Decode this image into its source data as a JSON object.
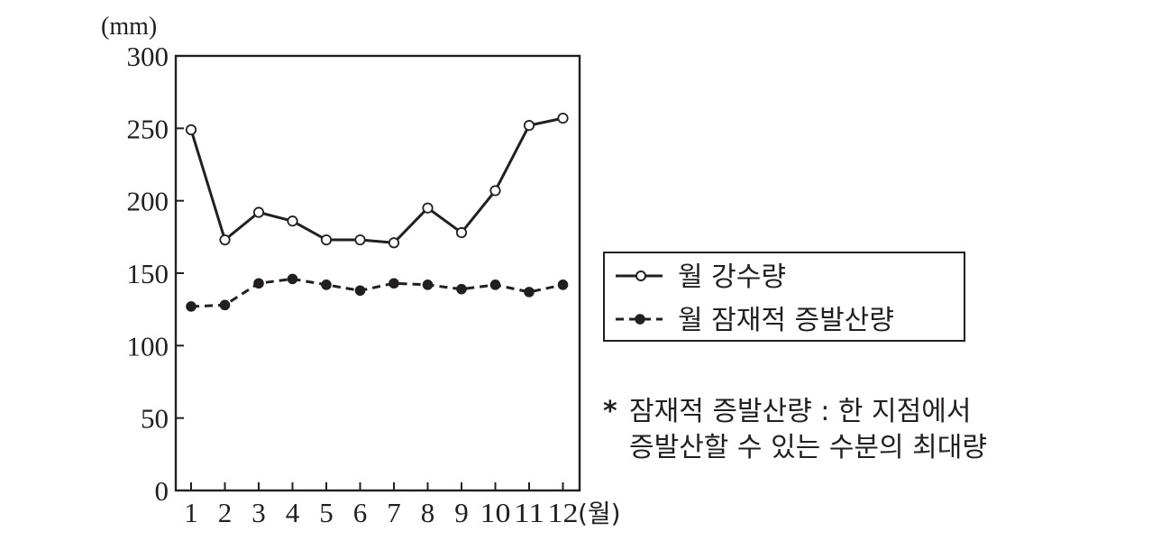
{
  "chart_data": {
    "type": "line",
    "y_unit_label": "(mm)",
    "x_unit_label": "(월)",
    "ylim": [
      0,
      300
    ],
    "yticks": [
      0,
      50,
      100,
      150,
      200,
      250,
      300
    ],
    "x": [
      "1",
      "2",
      "3",
      "4",
      "5",
      "6",
      "7",
      "8",
      "9",
      "10",
      "11",
      "12"
    ],
    "series": [
      {
        "name": "월 강수량",
        "line_style": "solid",
        "marker": "open-circle",
        "values": [
          249,
          173,
          192,
          186,
          173,
          173,
          171,
          195,
          178,
          207,
          252,
          257
        ]
      },
      {
        "name": "월 잠재적 증발산량",
        "line_style": "dashed",
        "marker": "filled-circle",
        "values": [
          127,
          128,
          143,
          146,
          142,
          138,
          143,
          142,
          139,
          142,
          137,
          142
        ]
      }
    ],
    "legend_position": "right",
    "grid": false
  },
  "note": {
    "marker": "*",
    "line1": "잠재적 증발산량 : 한 지점에서",
    "line2": "증발산할 수 있는 수분의 최대량"
  },
  "colors": {
    "ink": "#231f20",
    "background": "#ffffff"
  }
}
